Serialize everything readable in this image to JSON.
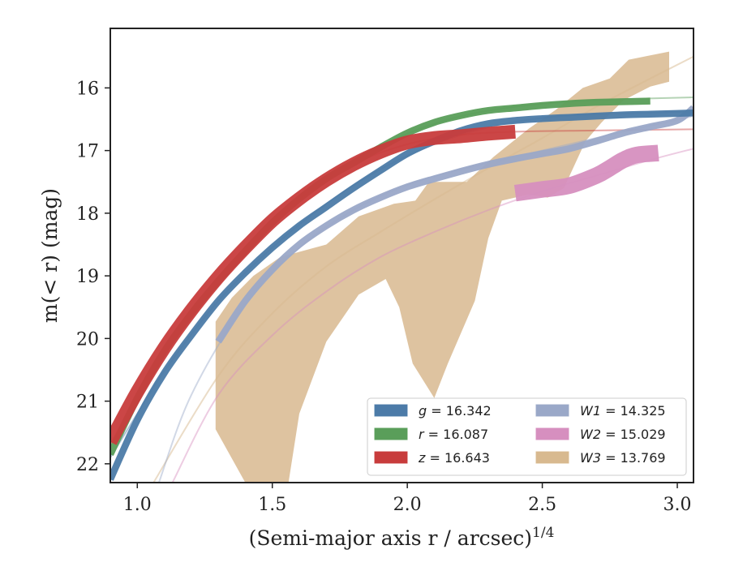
{
  "chart_data": {
    "type": "line",
    "title": "",
    "xlabel": "(Semi-major axis r / arcsec)",
    "xlabel_superscript": "1/4",
    "ylabel": "m(< r) (mag)",
    "xlim": [
      0.9,
      3.06
    ],
    "ylim": [
      22.3,
      15.05
    ],
    "y_inverted": true,
    "grid": false,
    "legend_position": "lower-right",
    "x_ticks": [
      "1.0",
      "1.5",
      "2.0",
      "2.5",
      "3.0"
    ],
    "x_tick_values": [
      1.0,
      1.5,
      2.0,
      2.5,
      3.0
    ],
    "y_ticks": [
      "16",
      "17",
      "18",
      "19",
      "20",
      "21",
      "22"
    ],
    "y_tick_values": [
      16,
      17,
      18,
      19,
      20,
      21,
      22
    ],
    "series": [
      {
        "name": "g = 16.342",
        "var": "g",
        "value_text": "= 16.342",
        "color": "#4c7ba8",
        "band_width": 0.05,
        "data": [
          [
            0.9,
            22.25
          ],
          [
            1.0,
            21.3
          ],
          [
            1.1,
            20.55
          ],
          [
            1.2,
            19.95
          ],
          [
            1.3,
            19.4
          ],
          [
            1.4,
            18.95
          ],
          [
            1.5,
            18.55
          ],
          [
            1.6,
            18.2
          ],
          [
            1.7,
            17.9
          ],
          [
            1.8,
            17.6
          ],
          [
            1.9,
            17.32
          ],
          [
            2.0,
            17.05
          ],
          [
            2.1,
            16.85
          ],
          [
            2.2,
            16.68
          ],
          [
            2.3,
            16.57
          ],
          [
            2.4,
            16.52
          ],
          [
            2.5,
            16.49
          ],
          [
            2.6,
            16.47
          ],
          [
            2.7,
            16.45
          ],
          [
            2.8,
            16.43
          ],
          [
            2.9,
            16.42
          ],
          [
            3.06,
            16.4
          ]
        ],
        "model": [
          [
            0.9,
            21.9
          ],
          [
            1.0,
            21.2
          ],
          [
            1.1,
            20.52
          ],
          [
            1.3,
            19.4
          ],
          [
            1.5,
            18.55
          ],
          [
            1.7,
            17.85
          ],
          [
            1.9,
            17.3
          ],
          [
            2.1,
            16.9
          ],
          [
            2.3,
            16.63
          ],
          [
            2.5,
            16.48
          ],
          [
            2.7,
            16.42
          ],
          [
            3.06,
            16.38
          ]
        ]
      },
      {
        "name": "r = 16.087",
        "var": "r",
        "value_text": "= 16.087",
        "color": "#5a9e5a",
        "band_width": 0.05,
        "data": [
          [
            0.9,
            21.85
          ],
          [
            1.0,
            20.95
          ],
          [
            1.1,
            20.2
          ],
          [
            1.2,
            19.6
          ],
          [
            1.3,
            19.08
          ],
          [
            1.4,
            18.6
          ],
          [
            1.5,
            18.15
          ],
          [
            1.6,
            17.77
          ],
          [
            1.7,
            17.45
          ],
          [
            1.8,
            17.2
          ],
          [
            1.9,
            16.95
          ],
          [
            2.0,
            16.72
          ],
          [
            2.1,
            16.55
          ],
          [
            2.2,
            16.44
          ],
          [
            2.3,
            16.36
          ],
          [
            2.4,
            16.32
          ],
          [
            2.5,
            16.28
          ],
          [
            2.6,
            16.25
          ],
          [
            2.7,
            16.23
          ],
          [
            2.8,
            16.22
          ],
          [
            2.9,
            16.21
          ]
        ],
        "model": [
          [
            0.9,
            21.7
          ],
          [
            1.0,
            20.95
          ],
          [
            1.2,
            19.6
          ],
          [
            1.4,
            18.6
          ],
          [
            1.6,
            17.78
          ],
          [
            1.8,
            17.18
          ],
          [
            2.0,
            16.73
          ],
          [
            2.2,
            16.45
          ],
          [
            2.4,
            16.3
          ],
          [
            2.6,
            16.22
          ],
          [
            2.8,
            16.18
          ],
          [
            3.06,
            16.15
          ]
        ]
      },
      {
        "name": "z = 16.643",
        "var": "z",
        "value_text": "= 16.643",
        "color": "#c83c3c",
        "band_width": 0.1,
        "data": [
          [
            0.9,
            21.65
          ],
          [
            1.0,
            20.85
          ],
          [
            1.1,
            20.15
          ],
          [
            1.2,
            19.55
          ],
          [
            1.3,
            19.02
          ],
          [
            1.4,
            18.55
          ],
          [
            1.5,
            18.12
          ],
          [
            1.6,
            17.77
          ],
          [
            1.7,
            17.47
          ],
          [
            1.8,
            17.22
          ],
          [
            1.9,
            17.02
          ],
          [
            2.0,
            16.87
          ],
          [
            2.1,
            16.8
          ],
          [
            2.2,
            16.77
          ],
          [
            2.3,
            16.73
          ],
          [
            2.4,
            16.7
          ]
        ],
        "model": [
          [
            0.9,
            21.7
          ],
          [
            1.0,
            20.9
          ],
          [
            1.2,
            19.55
          ],
          [
            1.4,
            18.55
          ],
          [
            1.6,
            17.78
          ],
          [
            1.8,
            17.22
          ],
          [
            2.0,
            16.9
          ],
          [
            2.2,
            16.75
          ],
          [
            2.4,
            16.7
          ],
          [
            2.7,
            16.68
          ],
          [
            3.06,
            16.66
          ]
        ]
      },
      {
        "name": "W1 = 14.325",
        "var": "W1",
        "value_text": "= 14.325",
        "color": "#9aa8c8",
        "band_width": 0.05,
        "data": [
          [
            1.3,
            20.05
          ],
          [
            1.4,
            19.4
          ],
          [
            1.5,
            18.9
          ],
          [
            1.6,
            18.5
          ],
          [
            1.7,
            18.2
          ],
          [
            1.8,
            17.95
          ],
          [
            1.9,
            17.75
          ],
          [
            2.0,
            17.58
          ],
          [
            2.1,
            17.45
          ],
          [
            2.2,
            17.33
          ],
          [
            2.3,
            17.22
          ],
          [
            2.4,
            17.13
          ],
          [
            2.5,
            17.05
          ],
          [
            2.6,
            16.97
          ],
          [
            2.7,
            16.85
          ],
          [
            2.8,
            16.72
          ],
          [
            2.9,
            16.62
          ],
          [
            3.0,
            16.52
          ],
          [
            3.06,
            16.32
          ]
        ],
        "model": [
          [
            1.08,
            22.3
          ],
          [
            1.2,
            20.9
          ],
          [
            1.4,
            19.45
          ],
          [
            1.6,
            18.55
          ],
          [
            1.8,
            17.95
          ],
          [
            2.0,
            17.55
          ],
          [
            2.2,
            17.3
          ],
          [
            2.4,
            17.1
          ],
          [
            2.6,
            16.9
          ],
          [
            2.8,
            16.7
          ],
          [
            3.06,
            16.45
          ]
        ]
      },
      {
        "name": "W2 = 15.029",
        "var": "W2",
        "value_text": "= 15.029",
        "color": "#d68fbf",
        "band_width": 0.12,
        "data": [
          [
            2.4,
            17.68
          ],
          [
            2.5,
            17.62
          ],
          [
            2.6,
            17.56
          ],
          [
            2.7,
            17.4
          ],
          [
            2.75,
            17.28
          ],
          [
            2.8,
            17.15
          ],
          [
            2.85,
            17.07
          ],
          [
            2.93,
            17.04
          ]
        ],
        "model": [
          [
            1.13,
            22.3
          ],
          [
            1.3,
            20.9
          ],
          [
            1.5,
            19.95
          ],
          [
            1.7,
            19.25
          ],
          [
            1.9,
            18.7
          ],
          [
            2.1,
            18.3
          ],
          [
            2.3,
            17.95
          ],
          [
            2.5,
            17.65
          ],
          [
            2.7,
            17.4
          ],
          [
            2.9,
            17.15
          ],
          [
            3.06,
            16.97
          ]
        ]
      },
      {
        "name": "W3 = 13.769",
        "var": "W3",
        "value_text": "= 13.769",
        "color": "#d8b98f",
        "band_upper": [
          [
            1.29,
            19.73
          ],
          [
            1.35,
            19.35
          ],
          [
            1.43,
            19.0
          ],
          [
            1.53,
            18.7
          ],
          [
            1.7,
            18.5
          ],
          [
            1.82,
            18.05
          ],
          [
            1.95,
            17.85
          ],
          [
            2.03,
            17.8
          ],
          [
            2.08,
            17.5
          ],
          [
            2.22,
            17.5
          ],
          [
            2.32,
            17.1
          ],
          [
            2.45,
            16.65
          ],
          [
            2.55,
            16.35
          ],
          [
            2.65,
            16.0
          ],
          [
            2.75,
            15.85
          ],
          [
            2.82,
            15.55
          ],
          [
            2.9,
            15.48
          ],
          [
            2.97,
            15.42
          ]
        ],
        "band_lower": [
          [
            1.29,
            21.45
          ],
          [
            1.4,
            22.3
          ],
          [
            1.56,
            22.3
          ],
          [
            1.6,
            21.2
          ],
          [
            1.7,
            20.05
          ],
          [
            1.82,
            19.3
          ],
          [
            1.92,
            19.05
          ],
          [
            1.97,
            19.5
          ],
          [
            2.02,
            20.4
          ],
          [
            2.1,
            20.95
          ],
          [
            2.15,
            20.4
          ],
          [
            2.22,
            19.7
          ],
          [
            2.25,
            19.4
          ],
          [
            2.3,
            18.4
          ],
          [
            2.35,
            17.8
          ],
          [
            2.45,
            17.7
          ],
          [
            2.52,
            17.75
          ],
          [
            2.58,
            17.6
          ],
          [
            2.66,
            16.85
          ],
          [
            2.72,
            16.55
          ],
          [
            2.8,
            16.2
          ],
          [
            2.9,
            15.98
          ],
          [
            2.97,
            15.9
          ]
        ],
        "model": [
          [
            1.06,
            22.3
          ],
          [
            1.3,
            20.6
          ],
          [
            1.5,
            19.6
          ],
          [
            1.7,
            18.85
          ],
          [
            1.9,
            18.3
          ],
          [
            2.1,
            17.78
          ],
          [
            2.3,
            17.28
          ],
          [
            2.5,
            16.8
          ],
          [
            2.7,
            16.3
          ],
          [
            2.9,
            15.85
          ],
          [
            3.06,
            15.5
          ]
        ]
      }
    ]
  }
}
